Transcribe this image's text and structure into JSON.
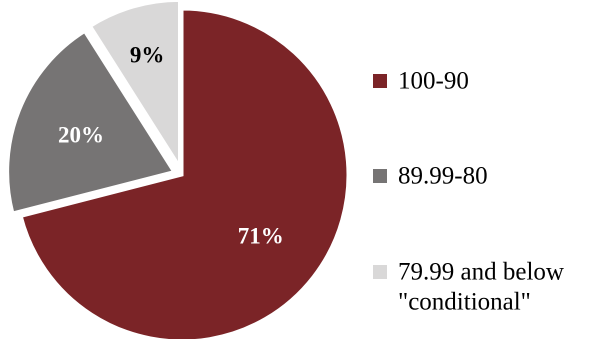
{
  "chart_data": {
    "type": "pie",
    "title": "",
    "slices": [
      {
        "label": "100-90",
        "value": 71,
        "display": "71%",
        "color": "#7b2427",
        "label_color": "#ffffff",
        "exploded": false
      },
      {
        "label": "89.99-80",
        "value": 20,
        "display": "20%",
        "color": "#767474",
        "label_color": "#ffffff",
        "exploded": true
      },
      {
        "label": "79.99 and below \"conditional\"",
        "value": 9,
        "display": "9%",
        "color": "#d9d8d8",
        "label_color": "#000000",
        "exploded": true
      }
    ],
    "legend": {
      "placement": "right",
      "entries": [
        {
          "lines": [
            "100-90"
          ]
        },
        {
          "lines": [
            "89.99-80"
          ]
        },
        {
          "lines": [
            "79.99 and below",
            "\"conditional\""
          ]
        }
      ]
    }
  }
}
